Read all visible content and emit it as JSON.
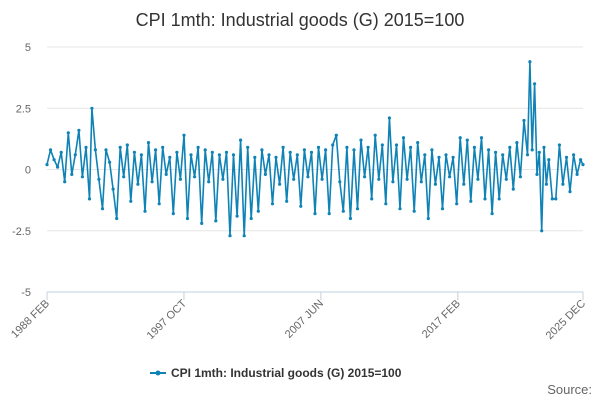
{
  "colors": {
    "series": "#0f82b6",
    "grid": "#e6e6e6",
    "axis": "#c0d0e0",
    "text": "#333333",
    "tick": "#666666"
  },
  "source_label": "Source:",
  "chart_data": {
    "type": "line",
    "title": "CPI 1mth: Industrial goods (G) 2015=100",
    "xlabel": "",
    "ylabel": "",
    "xlim": [
      "1988-02",
      "2025-12"
    ],
    "ylim": [
      -5,
      5
    ],
    "yticks": [
      5,
      2.5,
      0,
      -2.5,
      -5
    ],
    "ytick_labels": [
      "5",
      "2.5",
      "0",
      "-2.5",
      "-5"
    ],
    "xticks": [
      "1988-02",
      "1997-10",
      "2007-06",
      "2017-02",
      "2025-12"
    ],
    "xtick_labels": [
      "1988 FEB",
      "1997 OCT",
      "2007 JUN",
      "2017 FEB",
      "2025 DEC"
    ],
    "grid": "horizontal",
    "legend": "bottom-center",
    "series": [
      {
        "name": "CPI 1mth: Industrial goods (G) 2015=100",
        "points": [
          [
            "1988-02",
            0.2
          ],
          [
            "1988-05",
            0.8
          ],
          [
            "1988-08",
            0.4
          ],
          [
            "1988-11",
            0.1
          ],
          [
            "1989-02",
            0.7
          ],
          [
            "1989-05",
            -0.5
          ],
          [
            "1989-08",
            1.5
          ],
          [
            "1989-11",
            -0.2
          ],
          [
            "1990-02",
            0.6
          ],
          [
            "1990-05",
            1.6
          ],
          [
            "1990-08",
            -0.3
          ],
          [
            "1990-11",
            0.9
          ],
          [
            "1991-02",
            -1.2
          ],
          [
            "1991-04",
            2.5
          ],
          [
            "1991-07",
            0.8
          ],
          [
            "1991-10",
            -0.4
          ],
          [
            "1992-01",
            -1.6
          ],
          [
            "1992-04",
            0.8
          ],
          [
            "1992-07",
            0.3
          ],
          [
            "1992-10",
            -0.8
          ],
          [
            "1993-01",
            -2.0
          ],
          [
            "1993-04",
            0.9
          ],
          [
            "1993-07",
            -0.3
          ],
          [
            "1993-10",
            1.0
          ],
          [
            "1994-01",
            -1.3
          ],
          [
            "1994-04",
            0.7
          ],
          [
            "1994-07",
            -0.6
          ],
          [
            "1994-10",
            0.6
          ],
          [
            "1995-01",
            -1.7
          ],
          [
            "1995-04",
            1.1
          ],
          [
            "1995-07",
            -0.5
          ],
          [
            "1995-10",
            0.8
          ],
          [
            "1996-01",
            -1.4
          ],
          [
            "1996-04",
            0.9
          ],
          [
            "1996-07",
            -0.2
          ],
          [
            "1996-10",
            0.5
          ],
          [
            "1997-01",
            -1.8
          ],
          [
            "1997-04",
            0.7
          ],
          [
            "1997-07",
            -0.4
          ],
          [
            "1997-10",
            1.4
          ],
          [
            "1998-01",
            -2.0
          ],
          [
            "1998-04",
            0.6
          ],
          [
            "1998-07",
            -0.3
          ],
          [
            "1998-10",
            0.9
          ],
          [
            "1999-01",
            -2.2
          ],
          [
            "1999-04",
            0.8
          ],
          [
            "1999-07",
            -0.5
          ],
          [
            "1999-10",
            0.7
          ],
          [
            "2000-01",
            -2.1
          ],
          [
            "2000-04",
            0.6
          ],
          [
            "2000-07",
            -0.4
          ],
          [
            "2000-10",
            0.7
          ],
          [
            "2001-01",
            -2.7
          ],
          [
            "2001-04",
            0.6
          ],
          [
            "2001-07",
            -1.9
          ],
          [
            "2001-10",
            1.2
          ],
          [
            "2002-01",
            -2.7
          ],
          [
            "2002-04",
            0.9
          ],
          [
            "2002-07",
            -2.0
          ],
          [
            "2002-10",
            0.5
          ],
          [
            "2003-01",
            -1.7
          ],
          [
            "2003-04",
            0.8
          ],
          [
            "2003-07",
            -0.2
          ],
          [
            "2003-10",
            0.6
          ],
          [
            "2004-01",
            -1.4
          ],
          [
            "2004-04",
            0.5
          ],
          [
            "2004-07",
            -0.6
          ],
          [
            "2004-10",
            0.9
          ],
          [
            "2005-01",
            -1.3
          ],
          [
            "2005-04",
            0.7
          ],
          [
            "2005-07",
            -0.4
          ],
          [
            "2005-10",
            0.6
          ],
          [
            "2006-01",
            -1.5
          ],
          [
            "2006-04",
            0.8
          ],
          [
            "2006-07",
            -0.3
          ],
          [
            "2006-10",
            0.7
          ],
          [
            "2007-01",
            -1.8
          ],
          [
            "2007-04",
            0.9
          ],
          [
            "2007-07",
            -0.4
          ],
          [
            "2007-10",
            0.8
          ],
          [
            "2008-01",
            -1.8
          ],
          [
            "2008-04",
            1.0
          ],
          [
            "2008-07",
            1.4
          ],
          [
            "2008-10",
            -0.5
          ],
          [
            "2009-01",
            -1.7
          ],
          [
            "2009-04",
            0.9
          ],
          [
            "2009-07",
            -2.0
          ],
          [
            "2009-10",
            0.8
          ],
          [
            "2010-01",
            -1.6
          ],
          [
            "2010-04",
            1.2
          ],
          [
            "2010-07",
            -0.3
          ],
          [
            "2010-10",
            0.9
          ],
          [
            "2011-01",
            -1.2
          ],
          [
            "2011-04",
            1.4
          ],
          [
            "2011-07",
            -0.4
          ],
          [
            "2011-10",
            1.0
          ],
          [
            "2012-01",
            -1.4
          ],
          [
            "2012-04",
            2.1
          ],
          [
            "2012-07",
            -0.5
          ],
          [
            "2012-10",
            1.0
          ],
          [
            "2013-01",
            -1.6
          ],
          [
            "2013-04",
            1.3
          ],
          [
            "2013-07",
            -0.4
          ],
          [
            "2013-10",
            0.9
          ],
          [
            "2014-01",
            -1.7
          ],
          [
            "2014-04",
            1.1
          ],
          [
            "2014-07",
            -0.5
          ],
          [
            "2014-10",
            0.6
          ],
          [
            "2015-01",
            -2.0
          ],
          [
            "2015-04",
            0.8
          ],
          [
            "2015-07",
            -0.6
          ],
          [
            "2015-10",
            0.5
          ],
          [
            "2016-01",
            -1.6
          ],
          [
            "2016-04",
            0.6
          ],
          [
            "2016-07",
            -0.3
          ],
          [
            "2016-10",
            0.5
          ],
          [
            "2017-01",
            -1.4
          ],
          [
            "2017-04",
            1.3
          ],
          [
            "2017-07",
            -0.6
          ],
          [
            "2017-10",
            1.2
          ],
          [
            "2018-01",
            -1.3
          ],
          [
            "2018-04",
            0.9
          ],
          [
            "2018-07",
            -0.4
          ],
          [
            "2018-10",
            1.3
          ],
          [
            "2019-01",
            -1.2
          ],
          [
            "2019-04",
            0.8
          ],
          [
            "2019-07",
            -1.8
          ],
          [
            "2019-10",
            0.7
          ],
          [
            "2020-01",
            -1.2
          ],
          [
            "2020-04",
            0.6
          ],
          [
            "2020-07",
            -0.4
          ],
          [
            "2020-10",
            0.9
          ],
          [
            "2021-01",
            -0.8
          ],
          [
            "2021-04",
            1.1
          ],
          [
            "2021-07",
            -0.3
          ],
          [
            "2021-10",
            2.0
          ],
          [
            "2022-01",
            0.6
          ],
          [
            "2022-03",
            4.4
          ],
          [
            "2022-05",
            0.8
          ],
          [
            "2022-07",
            3.5
          ],
          [
            "2022-09",
            -0.2
          ],
          [
            "2022-11",
            0.7
          ],
          [
            "2023-01",
            -2.5
          ],
          [
            "2023-03",
            0.9
          ],
          [
            "2023-05",
            -0.6
          ],
          [
            "2023-07",
            0.4
          ],
          [
            "2023-10",
            -1.2
          ],
          [
            "2024-01",
            -1.2
          ],
          [
            "2024-04",
            1.0
          ],
          [
            "2024-07",
            -0.6
          ],
          [
            "2024-10",
            0.5
          ],
          [
            "2025-01",
            -0.9
          ],
          [
            "2025-04",
            0.6
          ],
          [
            "2025-07",
            -0.2
          ],
          [
            "2025-10",
            0.4
          ],
          [
            "2025-12",
            0.2
          ]
        ]
      }
    ]
  }
}
